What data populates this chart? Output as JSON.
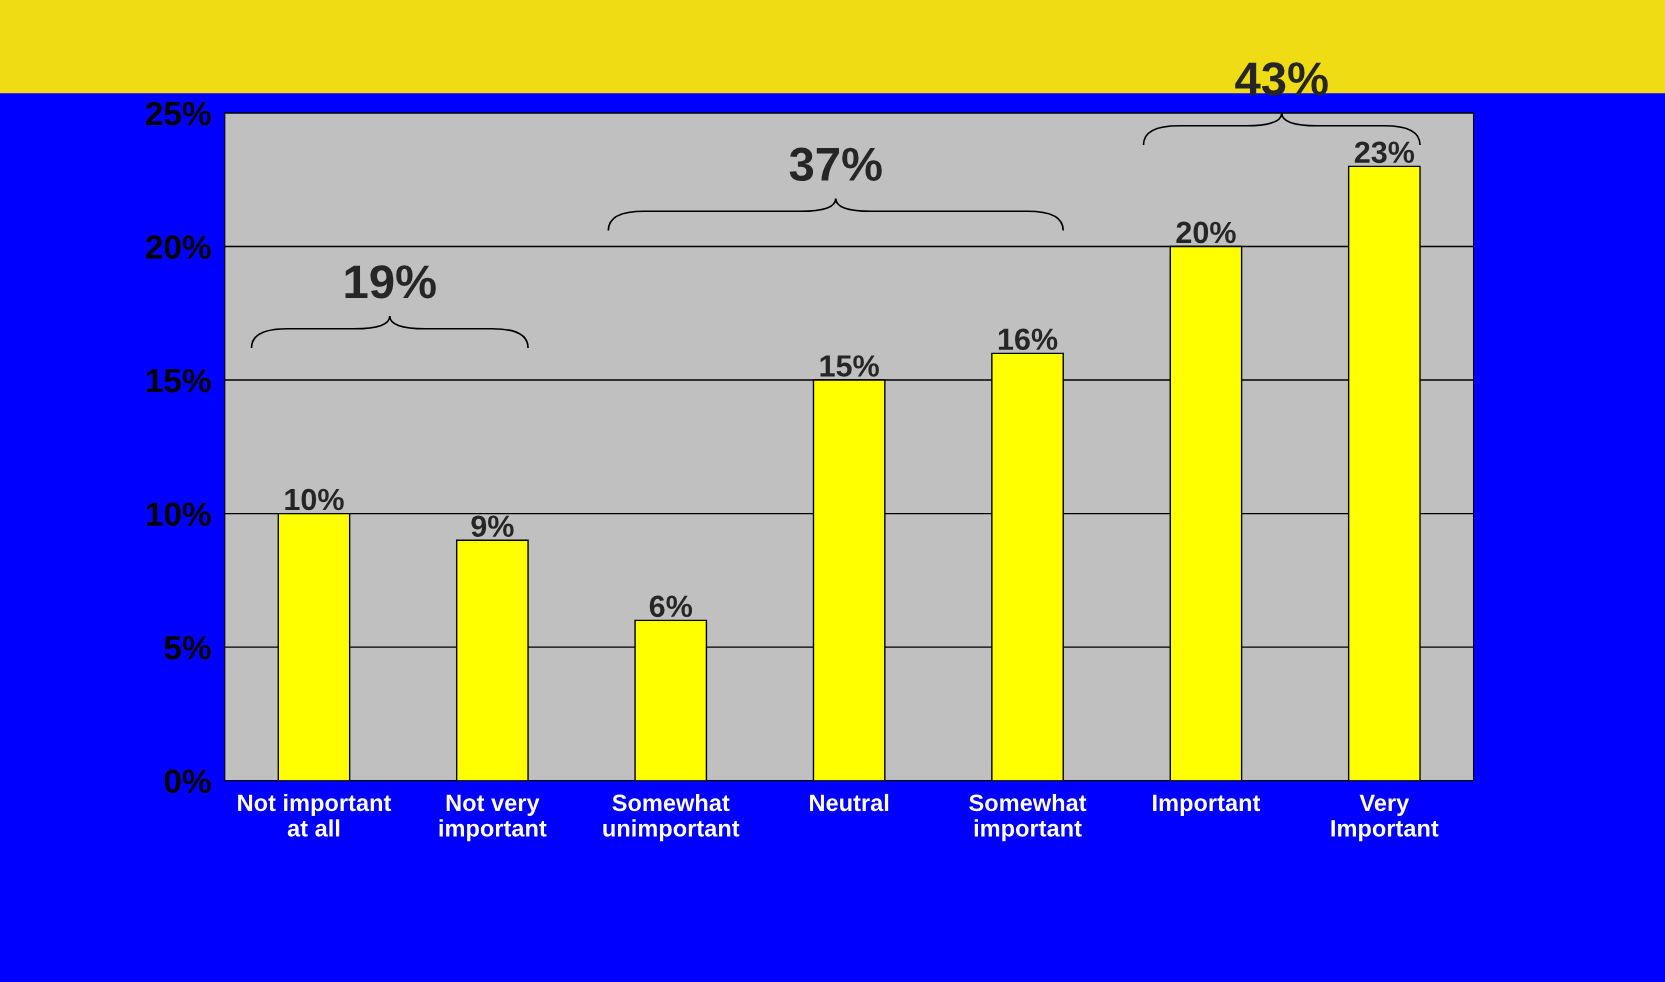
{
  "chart_data": {
    "type": "bar",
    "categories": [
      "Not important at all",
      "Not very important",
      "Somewhat unimportant",
      "Neutral",
      "Somewhat important",
      "Important",
      "Very Important"
    ],
    "values": [
      10,
      9,
      6,
      15,
      16,
      20,
      23
    ],
    "value_labels": [
      "10%",
      "9%",
      "6%",
      "15%",
      "16%",
      "20%",
      "23%"
    ],
    "color": "#ffff00",
    "ylim": [
      0,
      25
    ],
    "yticks": [
      {
        "value": 0,
        "label": "0%"
      },
      {
        "value": 5,
        "label": "5%"
      },
      {
        "value": 10,
        "label": "10%"
      },
      {
        "value": 15,
        "label": "15%"
      },
      {
        "value": 20,
        "label": "20%"
      },
      {
        "value": 25,
        "label": "25%"
      }
    ],
    "grid": "y",
    "legend": false,
    "annotations": [
      "19%",
      "37%",
      "43%"
    ]
  }
}
